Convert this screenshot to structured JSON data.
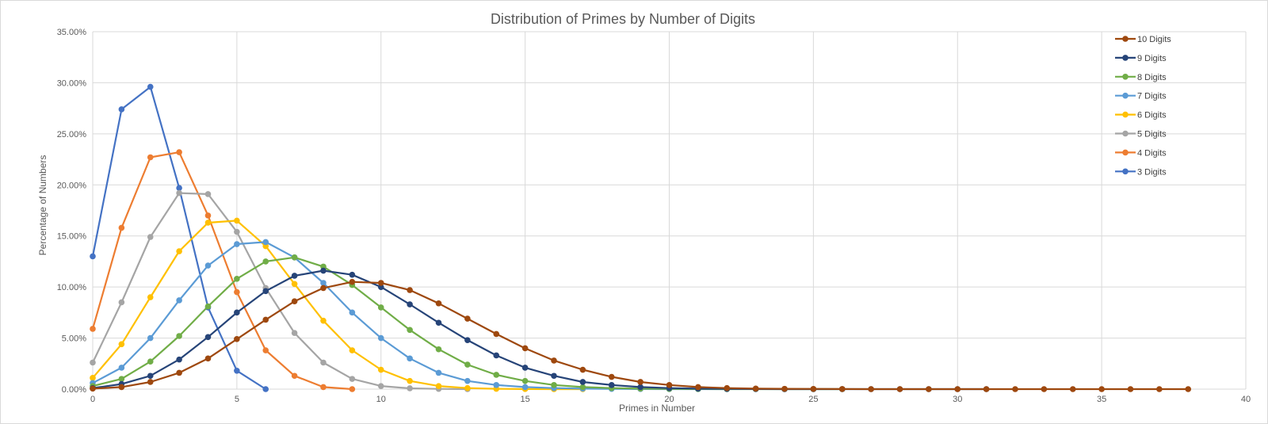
{
  "chart_data": {
    "type": "line",
    "title": "Distribution of Primes by Number of Digits",
    "xlabel": "Primes in Number",
    "ylabel": "Percentage of Numbers",
    "xlim": [
      0,
      40
    ],
    "ylim": [
      0,
      0.35
    ],
    "x_ticks": [
      "0",
      "5",
      "10",
      "15",
      "20",
      "25",
      "30",
      "35",
      "40"
    ],
    "y_ticks": [
      "0.00%",
      "5.00%",
      "10.00%",
      "15.00%",
      "20.00%",
      "25.00%",
      "30.00%",
      "35.00%"
    ],
    "grid": true,
    "legend_position": "top-right",
    "series": [
      {
        "name": "10 Digits",
        "color": "#9e480e",
        "x": [
          0,
          1,
          2,
          3,
          4,
          5,
          6,
          7,
          8,
          9,
          10,
          11,
          12,
          13,
          14,
          15,
          16,
          17,
          18,
          19,
          20,
          21,
          22,
          23,
          24,
          25,
          26,
          27,
          28,
          29,
          30,
          31,
          32,
          33,
          34,
          35,
          36,
          37,
          38
        ],
        "y": [
          0.0005,
          0.002,
          0.007,
          0.016,
          0.03,
          0.049,
          0.068,
          0.086,
          0.099,
          0.105,
          0.104,
          0.097,
          0.084,
          0.069,
          0.054,
          0.04,
          0.028,
          0.019,
          0.012,
          0.007,
          0.004,
          0.002,
          0.001,
          0.0005,
          0.0003,
          0.0002,
          0.0001,
          0,
          0,
          0,
          0,
          0,
          0,
          0,
          0,
          0,
          0,
          0,
          0
        ]
      },
      {
        "name": "9 Digits",
        "color": "#264478",
        "x": [
          0,
          1,
          2,
          3,
          4,
          5,
          6,
          7,
          8,
          9,
          10,
          11,
          12,
          13,
          14,
          15,
          16,
          17,
          18,
          19,
          20,
          21,
          22,
          23,
          24,
          25,
          26,
          27,
          28,
          29,
          30,
          31
        ],
        "y": [
          0.001,
          0.005,
          0.013,
          0.029,
          0.051,
          0.075,
          0.096,
          0.111,
          0.116,
          0.112,
          0.1,
          0.083,
          0.065,
          0.048,
          0.033,
          0.021,
          0.013,
          0.007,
          0.004,
          0.002,
          0.001,
          0.0005,
          0.0002,
          0.0001,
          0,
          0,
          0,
          0,
          0,
          0,
          0,
          0
        ]
      },
      {
        "name": "8 Digits",
        "color": "#70ad47",
        "x": [
          0,
          1,
          2,
          3,
          4,
          5,
          6,
          7,
          8,
          9,
          10,
          11,
          12,
          13,
          14,
          15,
          16,
          17,
          18,
          19,
          20,
          21,
          22,
          23,
          24,
          25,
          26
        ],
        "y": [
          0.003,
          0.01,
          0.027,
          0.052,
          0.081,
          0.108,
          0.125,
          0.129,
          0.12,
          0.102,
          0.08,
          0.058,
          0.039,
          0.024,
          0.014,
          0.008,
          0.004,
          0.002,
          0.001,
          0.0005,
          0.0002,
          0.0001,
          0,
          0,
          0,
          0,
          0
        ]
      },
      {
        "name": "7 Digits",
        "color": "#5b9bd5",
        "x": [
          0,
          1,
          2,
          3,
          4,
          5,
          6,
          7,
          8,
          9,
          10,
          11,
          12,
          13,
          14,
          15,
          16,
          17,
          18,
          19,
          20,
          21,
          22
        ],
        "y": [
          0.006,
          0.021,
          0.05,
          0.087,
          0.121,
          0.142,
          0.144,
          0.129,
          0.104,
          0.075,
          0.05,
          0.03,
          0.016,
          0.008,
          0.004,
          0.002,
          0.001,
          0.0005,
          0.0002,
          0.0001,
          0,
          0,
          0
        ]
      },
      {
        "name": "6 Digits",
        "color": "#ffc000",
        "x": [
          0,
          1,
          2,
          3,
          4,
          5,
          6,
          7,
          8,
          9,
          10,
          11,
          12,
          13,
          14,
          15,
          16,
          17
        ],
        "y": [
          0.011,
          0.044,
          0.09,
          0.135,
          0.163,
          0.165,
          0.14,
          0.103,
          0.067,
          0.038,
          0.019,
          0.008,
          0.003,
          0.001,
          0.0003,
          0.0001,
          0,
          0
        ]
      },
      {
        "name": "5 Digits",
        "color": "#a5a5a5",
        "x": [
          0,
          1,
          2,
          3,
          4,
          5,
          6,
          7,
          8,
          9,
          10,
          11,
          12,
          13
        ],
        "y": [
          0.026,
          0.085,
          0.149,
          0.192,
          0.191,
          0.154,
          0.099,
          0.055,
          0.026,
          0.01,
          0.003,
          0.0008,
          0.0002,
          0
        ]
      },
      {
        "name": "4 Digits",
        "color": "#ed7d31",
        "x": [
          0,
          1,
          2,
          3,
          4,
          5,
          6,
          7,
          8,
          9
        ],
        "y": [
          0.059,
          0.158,
          0.227,
          0.232,
          0.17,
          0.095,
          0.038,
          0.013,
          0.002,
          0
        ]
      },
      {
        "name": "3 Digits",
        "color": "#4472c4",
        "x": [
          0,
          1,
          2,
          3,
          4,
          5,
          6
        ],
        "y": [
          0.13,
          0.274,
          0.296,
          0.197,
          0.08,
          0.018,
          0
        ]
      }
    ]
  }
}
